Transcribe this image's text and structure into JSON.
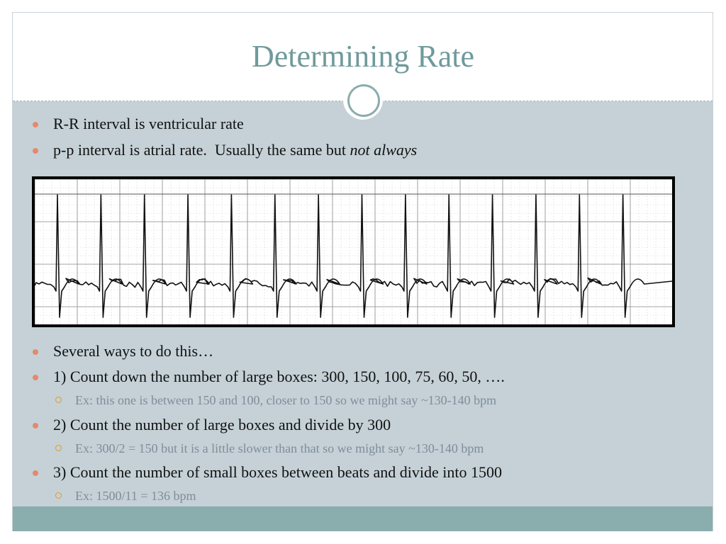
{
  "slide": {
    "title": "Determining Rate",
    "colors": {
      "accent": "#6f9a9c",
      "body_bg": "#c5d1d7",
      "footer_bg": "#8aadae",
      "bullet": "#e38a6c",
      "sub_bullet": "#e39a1f"
    }
  },
  "bullets_top": [
    {
      "text": "R-R interval is ventricular rate"
    },
    {
      "text_before": "p-p interval is atrial rate.  Usually the same but ",
      "text_italic": "not always"
    }
  ],
  "ecg": {
    "image": "ecg-rhythm-strip",
    "beats": 14
  },
  "bullets_bottom": [
    {
      "text": "Several ways to do this…"
    },
    {
      "text": "1) Count down the number of large boxes: 300, 150, 100, 75, 60, 50, ….",
      "sub": "Ex: this one is between 150 and 100, closer to 150 so we might say ~130-140 bpm"
    },
    {
      "text": "2) Count the number of large boxes and divide by 300",
      "sub": "Ex: 300/2 = 150 but it is a little slower than that so we might say ~130-140 bpm"
    },
    {
      "text": "3) Count the number of small boxes between beats and divide into 1500",
      "sub": "Ex: 1500/11 = 136 bpm"
    }
  ]
}
